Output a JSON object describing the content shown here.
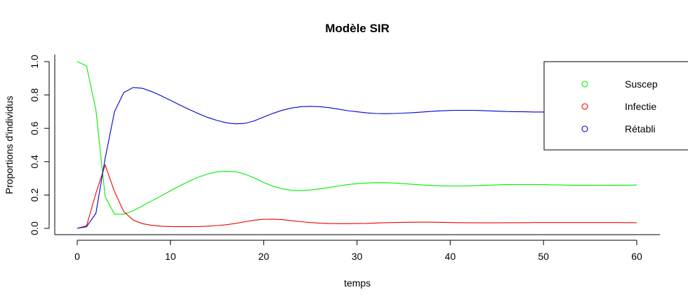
{
  "chart_data": {
    "type": "line",
    "title": "Modèle SIR",
    "xlabel": "temps",
    "ylabel": "Proportions d'individus",
    "xlim": [
      0,
      60
    ],
    "ylim": [
      0,
      1
    ],
    "x_ticks": [
      "0",
      "10",
      "20",
      "30",
      "40",
      "50",
      "60"
    ],
    "y_ticks": [
      "0.0",
      "0.2",
      "0.4",
      "0.6",
      "0.8",
      "1.0"
    ],
    "legend_position": "top-right",
    "grid": false,
    "x": [
      0,
      1,
      2,
      3,
      4,
      5,
      6,
      7,
      8,
      9,
      10,
      11,
      12,
      13,
      14,
      15,
      16,
      17,
      18,
      19,
      20,
      21,
      22,
      23,
      24,
      25,
      26,
      27,
      28,
      29,
      30,
      31,
      32,
      33,
      34,
      35,
      36,
      37,
      38,
      39,
      40,
      41,
      42,
      43,
      44,
      45,
      46,
      47,
      48,
      49,
      50,
      51,
      52,
      53,
      54,
      55,
      56,
      57,
      58,
      59,
      60
    ],
    "series": [
      {
        "name": "Suscep",
        "color": "#00ee00",
        "values": [
          1.0,
          0.975,
          0.71,
          0.19,
          0.085,
          0.085,
          0.105,
          0.135,
          0.165,
          0.195,
          0.225,
          0.255,
          0.283,
          0.307,
          0.326,
          0.339,
          0.343,
          0.34,
          0.325,
          0.302,
          0.275,
          0.253,
          0.237,
          0.228,
          0.226,
          0.23,
          0.237,
          0.245,
          0.254,
          0.262,
          0.268,
          0.272,
          0.274,
          0.274,
          0.272,
          0.268,
          0.264,
          0.26,
          0.257,
          0.255,
          0.254,
          0.254,
          0.255,
          0.257,
          0.259,
          0.261,
          0.262,
          0.263,
          0.263,
          0.263,
          0.262,
          0.261,
          0.26,
          0.259,
          0.258,
          0.258,
          0.258,
          0.258,
          0.259,
          0.259,
          0.26
        ]
      },
      {
        "name": "Infectie",
        "color": "#ee0000",
        "values": [
          0.0,
          0.015,
          0.21,
          0.38,
          0.22,
          0.1,
          0.05,
          0.028,
          0.018,
          0.013,
          0.011,
          0.01,
          0.01,
          0.011,
          0.013,
          0.017,
          0.022,
          0.03,
          0.04,
          0.049,
          0.054,
          0.055,
          0.052,
          0.046,
          0.04,
          0.035,
          0.031,
          0.029,
          0.028,
          0.028,
          0.029,
          0.03,
          0.032,
          0.034,
          0.035,
          0.036,
          0.037,
          0.037,
          0.037,
          0.036,
          0.035,
          0.034,
          0.034,
          0.033,
          0.033,
          0.033,
          0.034,
          0.034,
          0.034,
          0.035,
          0.035,
          0.035,
          0.035,
          0.035,
          0.035,
          0.035,
          0.035,
          0.035,
          0.035,
          0.034,
          0.034
        ]
      },
      {
        "name": "Rétabli",
        "color": "#0000cc",
        "values": [
          0.0,
          0.01,
          0.09,
          0.42,
          0.7,
          0.815,
          0.845,
          0.84,
          0.82,
          0.795,
          0.768,
          0.74,
          0.713,
          0.688,
          0.665,
          0.647,
          0.633,
          0.627,
          0.63,
          0.645,
          0.668,
          0.69,
          0.709,
          0.722,
          0.73,
          0.732,
          0.73,
          0.724,
          0.715,
          0.706,
          0.699,
          0.693,
          0.689,
          0.688,
          0.689,
          0.691,
          0.694,
          0.698,
          0.702,
          0.705,
          0.707,
          0.708,
          0.708,
          0.707,
          0.705,
          0.703,
          0.701,
          0.7,
          0.699,
          0.698,
          0.698,
          0.698,
          0.699,
          0.7,
          0.701,
          0.702,
          0.702,
          0.703,
          0.703,
          0.703,
          0.703
        ]
      }
    ]
  }
}
